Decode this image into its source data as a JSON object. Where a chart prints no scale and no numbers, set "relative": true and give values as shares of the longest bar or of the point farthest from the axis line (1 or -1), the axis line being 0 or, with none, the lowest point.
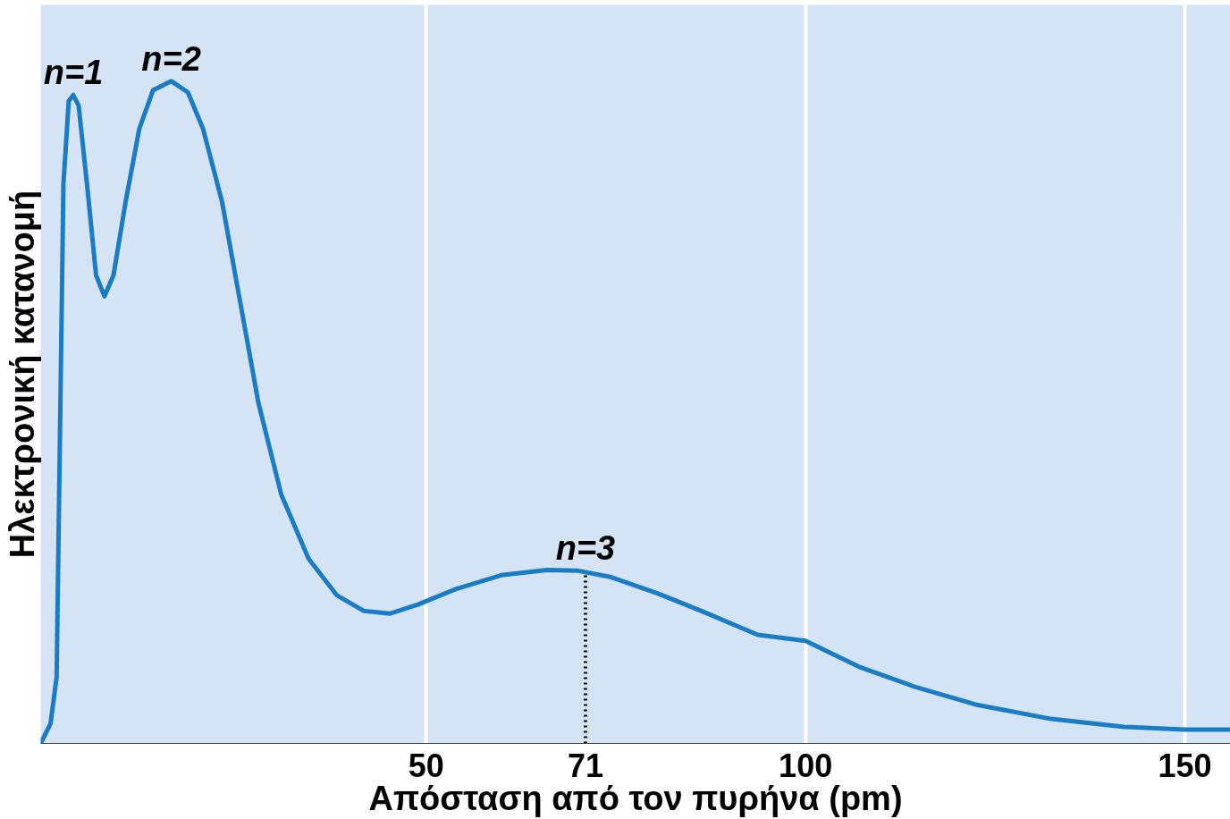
{
  "chart_data": {
    "type": "line",
    "relative": true,
    "xlabel": "Απόσταση από τον πυρήνα (pm)",
    "ylabel": "Ηλεκτρονική κατανομή",
    "x": [
      -0.8,
      0.5,
      1.3,
      1.7,
      2.2,
      2.9,
      3.5,
      4.2,
      5.3,
      6.5,
      7.6,
      8.8,
      10.4,
      12.2,
      14.0,
      16.4,
      18.6,
      20.6,
      23.1,
      25.5,
      27.9,
      30.9,
      34.5,
      38.2,
      41.8,
      45.2,
      49.0,
      53.9,
      59.9,
      65.9,
      69.9,
      74.4,
      80.4,
      86.5,
      93.7,
      100,
      107,
      114.3,
      122.7,
      132.4,
      142,
      150,
      156
    ],
    "series": [
      {
        "color": "#1a7cc4",
        "values": [
          0,
          0.03,
          0.1,
          0.43,
          0.845,
          0.97,
          0.979,
          0.963,
          0.845,
          0.707,
          0.675,
          0.707,
          0.818,
          0.928,
          0.986,
          1.0,
          0.983,
          0.928,
          0.818,
          0.666,
          0.514,
          0.376,
          0.279,
          0.224,
          0.2,
          0.196,
          0.21,
          0.233,
          0.254,
          0.262,
          0.261,
          0.251,
          0.227,
          0.199,
          0.164,
          0.155,
          0.116,
          0.086,
          0.058,
          0.037,
          0.025,
          0.021,
          0.021
        ]
      }
    ],
    "xlim": [
      -0.8,
      156
    ],
    "xticks": [
      50,
      100,
      150
    ],
    "grid": "x",
    "tick_labels": "x",
    "marker": "none",
    "line_style": "solid",
    "ref_lines": [
      {
        "axis": "x",
        "value": 71,
        "label": "71",
        "color": "#000000",
        "line_style": "dotted"
      }
    ],
    "annotations": [
      {
        "text": "n=1",
        "x": 3.5,
        "y": 0.979
      },
      {
        "text": "n=2",
        "x": 16.4,
        "y": 1.0
      },
      {
        "text": "n=3",
        "x": 71,
        "y": 0.261
      }
    ]
  }
}
